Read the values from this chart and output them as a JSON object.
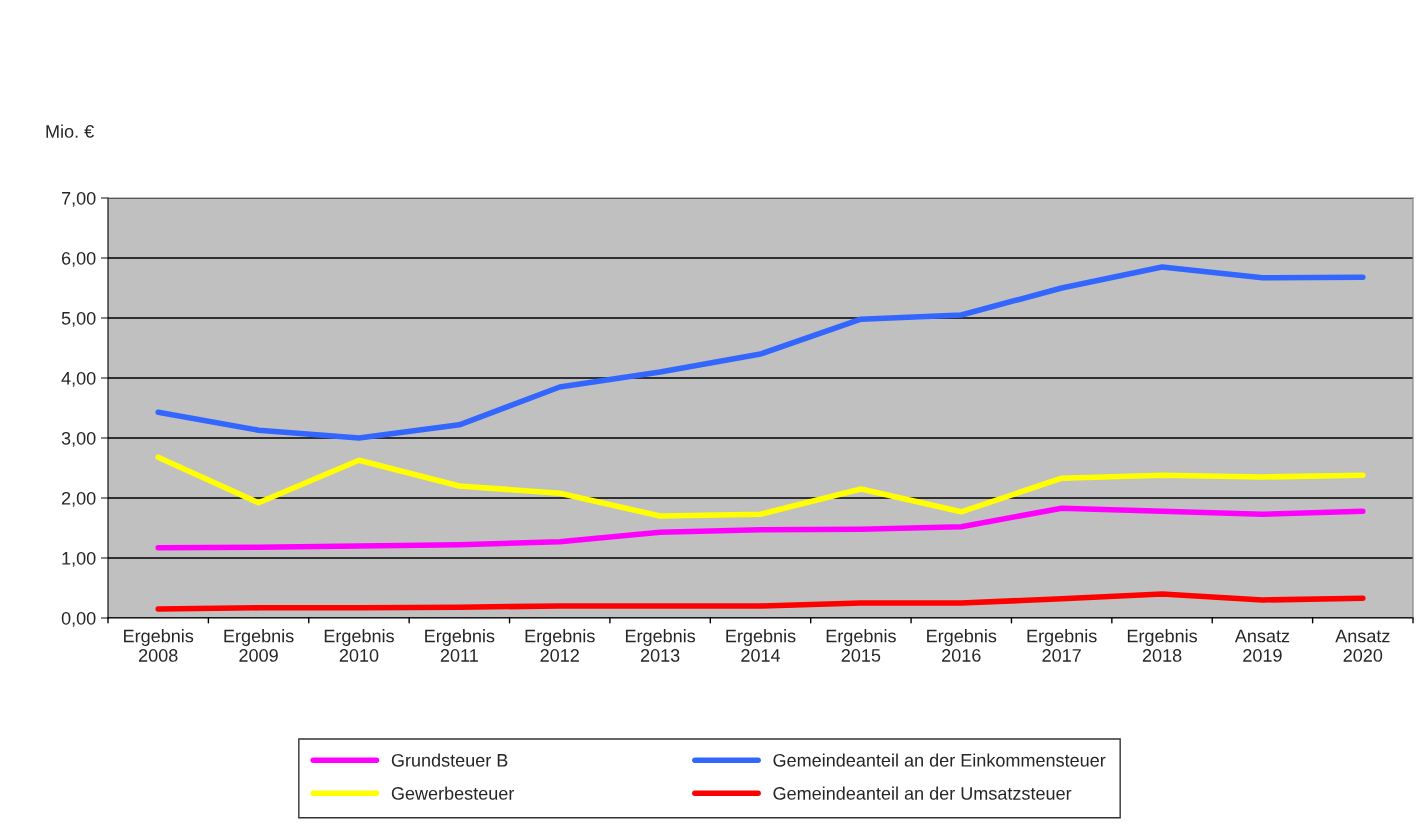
{
  "chart_data": {
    "type": "line",
    "ylabel": "Mio. €",
    "categories": [
      "Ergebnis\n2008",
      "Ergebnis\n2009",
      "Ergebnis\n2010",
      "Ergebnis\n2011",
      "Ergebnis\n2012",
      "Ergebnis\n2013",
      "Ergebnis\n2014",
      "Ergebnis\n2015",
      "Ergebnis\n2016",
      "Ergebnis\n2017",
      "Ergebnis\n2018",
      "Ansatz\n2019",
      "Ansatz\n2020"
    ],
    "series": [
      {
        "name": "Grundsteuer B",
        "color": "#ff00ff",
        "values": [
          1.17,
          1.18,
          1.2,
          1.22,
          1.27,
          1.43,
          1.47,
          1.48,
          1.52,
          1.83,
          1.78,
          1.73,
          1.78
        ]
      },
      {
        "name": "Gewerbesteuer",
        "color": "#ffff00",
        "values": [
          2.68,
          1.92,
          2.63,
          2.2,
          2.08,
          1.7,
          1.73,
          2.15,
          1.77,
          2.33,
          2.38,
          2.35,
          2.38
        ]
      },
      {
        "name": "Gemeindeanteil an der Einkommensteuer",
        "color": "#3366ff",
        "values": [
          3.43,
          3.13,
          3.0,
          3.22,
          3.85,
          4.1,
          4.4,
          4.98,
          5.05,
          5.5,
          5.85,
          5.67,
          5.68
        ]
      },
      {
        "name": "Gemeindeanteil an der Umsatzsteuer",
        "color": "#ff0000",
        "values": [
          0.15,
          0.17,
          0.17,
          0.18,
          0.2,
          0.2,
          0.2,
          0.25,
          0.25,
          0.32,
          0.4,
          0.3,
          0.33
        ]
      }
    ],
    "ylim": [
      0,
      7
    ],
    "yticks": [
      {
        "value": 0,
        "label": "0,00"
      },
      {
        "value": 1,
        "label": "1,00"
      },
      {
        "value": 2,
        "label": "2,00"
      },
      {
        "value": 3,
        "label": "3,00"
      },
      {
        "value": 4,
        "label": "4,00"
      },
      {
        "value": 5,
        "label": "5,00"
      },
      {
        "value": 6,
        "label": "6,00"
      },
      {
        "value": 7,
        "label": "7,00"
      }
    ],
    "grid": "y",
    "legend": "bottom",
    "marker": "none",
    "line_style": "solid"
  }
}
